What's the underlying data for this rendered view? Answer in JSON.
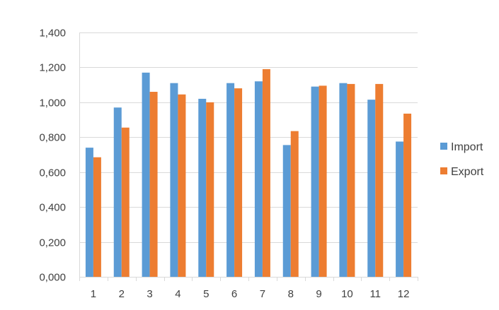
{
  "chart_data": {
    "type": "bar",
    "title": "",
    "xlabel": "",
    "ylabel": "",
    "categories": [
      "1",
      "2",
      "3",
      "4",
      "5",
      "6",
      "7",
      "8",
      "9",
      "10",
      "11",
      "12"
    ],
    "series": [
      {
        "name": "Import",
        "color": "#5B9BD5",
        "values": [
          0.74,
          0.97,
          1.17,
          1.11,
          1.02,
          1.11,
          1.12,
          0.755,
          1.09,
          1.11,
          1.015,
          0.775
        ]
      },
      {
        "name": "Export",
        "color": "#ED7D31",
        "values": [
          0.685,
          0.855,
          1.06,
          1.045,
          1.0,
          1.08,
          1.19,
          0.835,
          1.095,
          1.105,
          1.105,
          0.935
        ]
      }
    ],
    "ylim": [
      0,
      1.4
    ],
    "yticks": [
      0,
      0.2,
      0.4,
      0.6,
      0.8,
      1.0,
      1.2,
      1.4
    ],
    "ytick_labels": [
      "0,000",
      "0,200",
      "0,400",
      "0,600",
      "0,800",
      "1,000",
      "1,200",
      "1,400"
    ],
    "grid": "horizontal",
    "legend_position": "right",
    "gridline_color": "#D9D9D9",
    "axis_color": "#D9D9D9"
  }
}
